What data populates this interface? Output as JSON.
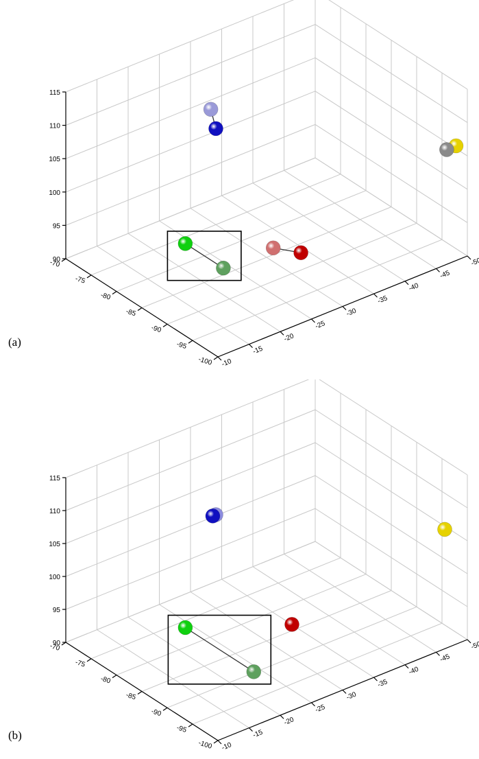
{
  "panels": [
    {
      "id": "a",
      "label": "(a)"
    },
    {
      "id": "b",
      "label": "(b)"
    }
  ],
  "chart_data": [
    {
      "type": "scatter3d",
      "title": "",
      "xlabel": "",
      "ylabel": "",
      "zlabel": "",
      "x_axis": {
        "range": [
          -100,
          -70
        ],
        "ticks": [
          -70,
          -75,
          -80,
          -85,
          -90,
          -95,
          -100
        ]
      },
      "y_axis": {
        "range": [
          -50,
          -10
        ],
        "ticks": [
          -10,
          -15,
          -20,
          -25,
          -30,
          -35,
          -40,
          -45,
          -50
        ]
      },
      "z_axis": {
        "range": [
          90,
          115
        ],
        "ticks": [
          90,
          95,
          100,
          105,
          110,
          115
        ]
      },
      "grid": true,
      "points": [
        {
          "group": "blue",
          "role": "light",
          "x": -74,
          "y": -30,
          "z": 106.8,
          "color": "#9a9ad8"
        },
        {
          "group": "blue",
          "role": "dark",
          "x": -75,
          "y": -30,
          "z": 104.4,
          "color": "#1010c0"
        },
        {
          "group": "green",
          "role": "dark",
          "x": -82.5,
          "y": -19,
          "z": 95,
          "color": "#10d010"
        },
        {
          "group": "green",
          "role": "light",
          "x": -90,
          "y": -19,
          "z": 95,
          "color": "#5ea05e"
        },
        {
          "group": "red",
          "role": "light",
          "x": -90,
          "y": -27,
          "z": 95,
          "color": "#d07070"
        },
        {
          "group": "red",
          "role": "dark",
          "x": -93,
          "y": -29,
          "z": 95,
          "color": "#c00000"
        },
        {
          "group": "yellow",
          "role": "dark",
          "x": -99,
          "y": -49,
          "z": 106.4,
          "color": "#e6d200"
        },
        {
          "group": "yellow",
          "role": "light",
          "x": -99,
          "y": -47.5,
          "z": 106.4,
          "color": "#8a8a8a"
        }
      ],
      "links": [
        [
          "blue",
          "light",
          "blue",
          "dark"
        ],
        [
          "green",
          "dark",
          "green",
          "light"
        ],
        [
          "red",
          "light",
          "red",
          "dark"
        ],
        [
          "yellow",
          "dark",
          "yellow",
          "light"
        ]
      ],
      "highlight_box_group": "green"
    },
    {
      "type": "scatter3d",
      "title": "",
      "xlabel": "",
      "ylabel": "",
      "zlabel": "",
      "x_axis": {
        "range": [
          -100,
          -70
        ],
        "ticks": [
          -70,
          -75,
          -80,
          -85,
          -90,
          -95,
          -100
        ]
      },
      "y_axis": {
        "range": [
          -50,
          -10
        ],
        "ticks": [
          -10,
          -15,
          -20,
          -25,
          -30,
          -35,
          -40,
          -45,
          -50
        ]
      },
      "z_axis": {
        "range": [
          90,
          115
        ],
        "ticks": [
          90,
          95,
          100,
          105,
          110,
          115
        ]
      },
      "grid": true,
      "points": [
        {
          "group": "blue",
          "role": "light",
          "x": -75,
          "y": -30,
          "z": 104.2,
          "color": "#8c8ce0"
        },
        {
          "group": "blue",
          "role": "dark",
          "x": -75,
          "y": -29.5,
          "z": 104.2,
          "color": "#1010c0"
        },
        {
          "group": "green",
          "role": "dark",
          "x": -82.5,
          "y": -19,
          "z": 95,
          "color": "#10d010"
        },
        {
          "group": "green",
          "role": "light",
          "x": -96,
          "y": -19,
          "z": 95,
          "color": "#5ea05e"
        },
        {
          "group": "red",
          "role": "dark",
          "x": -90,
          "y": -30,
          "z": 95,
          "color": "#c00000"
        },
        {
          "group": "yellow",
          "role": "dark",
          "x": -98,
          "y": -48,
          "z": 106.5,
          "color": "#e6d200"
        }
      ],
      "links": [
        [
          "green",
          "dark",
          "green",
          "light"
        ]
      ],
      "highlight_box_group": "green"
    }
  ]
}
